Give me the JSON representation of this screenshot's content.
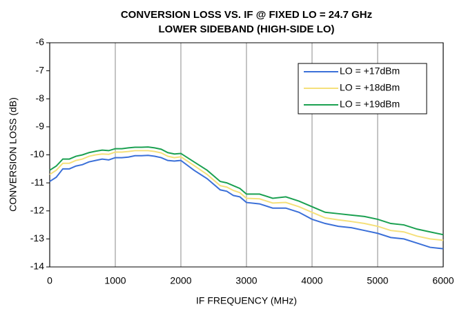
{
  "chart_data": {
    "type": "line",
    "title": "CONVERSION LOSS VS. IF @ FIXED LO = 24.7 GHz",
    "subtitle": "LOWER SIDEBAND (HIGH-SIDE LO)",
    "xlabel": "IF FREQUENCY (MHz)",
    "ylabel": "CONVERSION LOSS (dB)",
    "x": [
      0,
      100,
      200,
      300,
      400,
      500,
      600,
      700,
      800,
      900,
      1000,
      1100,
      1200,
      1300,
      1400,
      1500,
      1600,
      1700,
      1800,
      1900,
      2000,
      2200,
      2400,
      2600,
      2700,
      2800,
      2900,
      3000,
      3200,
      3400,
      3600,
      3800,
      4000,
      4200,
      4400,
      4600,
      4800,
      5000,
      5200,
      5400,
      5600,
      5800,
      6000
    ],
    "series": [
      {
        "name": "LO = +17dBm",
        "color": "#3a6fd8",
        "values": [
          -10.95,
          -10.8,
          -10.5,
          -10.5,
          -10.4,
          -10.35,
          -10.25,
          -10.2,
          -10.15,
          -10.18,
          -10.1,
          -10.1,
          -10.08,
          -10.03,
          -10.03,
          -10.02,
          -10.05,
          -10.1,
          -10.2,
          -10.22,
          -10.2,
          -10.55,
          -10.85,
          -11.25,
          -11.3,
          -11.45,
          -11.5,
          -11.7,
          -11.75,
          -11.9,
          -11.9,
          -12.05,
          -12.3,
          -12.45,
          -12.55,
          -12.6,
          -12.7,
          -12.8,
          -12.95,
          -13.0,
          -13.15,
          -13.3,
          -13.35
        ]
      },
      {
        "name": "LO = +18dBm",
        "color": "#f5e07a",
        "values": [
          -10.7,
          -10.55,
          -10.3,
          -10.3,
          -10.2,
          -10.15,
          -10.05,
          -10.0,
          -9.97,
          -9.98,
          -9.9,
          -9.9,
          -9.88,
          -9.85,
          -9.85,
          -9.85,
          -9.88,
          -9.93,
          -10.05,
          -10.1,
          -10.07,
          -10.38,
          -10.7,
          -11.1,
          -11.15,
          -11.27,
          -11.35,
          -11.55,
          -11.57,
          -11.72,
          -11.7,
          -11.85,
          -12.05,
          -12.25,
          -12.32,
          -12.38,
          -12.45,
          -12.55,
          -12.7,
          -12.75,
          -12.9,
          -13.0,
          -13.05
        ]
      },
      {
        "name": "LO = +19dBm",
        "color": "#1aa050",
        "values": [
          -10.55,
          -10.4,
          -10.15,
          -10.15,
          -10.05,
          -10.0,
          -9.92,
          -9.87,
          -9.83,
          -9.85,
          -9.78,
          -9.78,
          -9.75,
          -9.73,
          -9.73,
          -9.72,
          -9.75,
          -9.8,
          -9.92,
          -9.97,
          -9.95,
          -10.25,
          -10.55,
          -10.95,
          -11.0,
          -11.1,
          -11.2,
          -11.4,
          -11.4,
          -11.55,
          -11.5,
          -11.65,
          -11.85,
          -12.05,
          -12.1,
          -12.15,
          -12.2,
          -12.3,
          -12.45,
          -12.5,
          -12.65,
          -12.75,
          -12.85
        ]
      }
    ],
    "xlim": [
      0,
      6000
    ],
    "xticks": [
      0,
      1000,
      2000,
      3000,
      4000,
      5000,
      6000
    ],
    "ylim": [
      -14,
      -6
    ],
    "yticks": [
      -14,
      -13,
      -12,
      -11,
      -10,
      -9,
      -8,
      -7,
      -6
    ],
    "grid": "x",
    "legend": "upper right"
  }
}
